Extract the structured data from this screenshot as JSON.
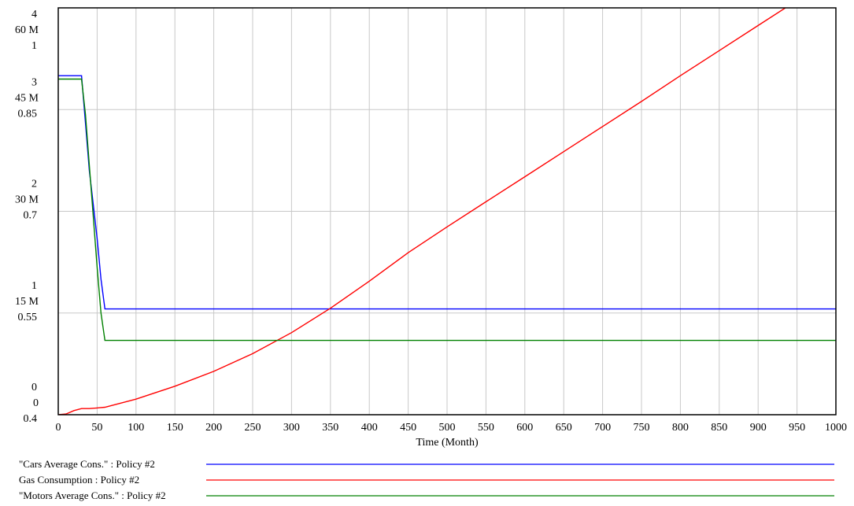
{
  "chart_data": {
    "type": "line",
    "title": "",
    "xlabel": "Time (Month)",
    "xlim": [
      0,
      1000
    ],
    "x_ticks": [
      0,
      50,
      100,
      150,
      200,
      250,
      300,
      350,
      400,
      450,
      500,
      550,
      600,
      650,
      700,
      750,
      800,
      850,
      900,
      950,
      1000
    ],
    "grid": true,
    "legend_position": "bottom",
    "y_axes": [
      {
        "min": 0,
        "max": 4,
        "tick_labels": [
          "0",
          "1",
          "2",
          "3",
          "4"
        ]
      },
      {
        "min": 0,
        "max": 60000000,
        "tick_labels": [
          "0",
          "15 M",
          "30 M",
          "45 M",
          "60 M"
        ]
      },
      {
        "min": 0.4,
        "max": 1,
        "tick_labels": [
          "0.4",
          "0.55",
          "0.7",
          "0.85",
          "1"
        ]
      }
    ],
    "series": [
      {
        "name": "\"Cars Average Cons.\" : Policy #2",
        "color": "#0000ff",
        "axis": 2,
        "x": [
          0,
          30,
          35,
          40,
          45,
          50,
          55,
          60,
          1000
        ],
        "y": [
          0.9,
          0.9,
          0.83,
          0.76,
          0.71,
          0.66,
          0.6,
          0.556,
          0.556
        ]
      },
      {
        "name": "Gas Consumption : Policy #2",
        "color": "#ff0000",
        "axis": 1,
        "x": [
          0,
          10,
          20,
          30,
          40,
          50,
          60,
          100,
          150,
          200,
          250,
          300,
          350,
          400,
          450,
          500,
          550,
          600,
          650,
          700,
          750,
          800,
          850,
          900,
          950,
          1000
        ],
        "y": [
          0,
          100000,
          600000,
          900000,
          900000,
          1000000,
          1100000,
          2300000,
          4200000,
          6400000,
          9000000,
          12100000,
          15700000,
          19700000,
          23900000,
          27700000,
          31400000,
          35100000,
          38800000,
          42500000,
          46200000,
          50000000,
          53700000,
          57400000,
          61100000,
          64700000
        ]
      },
      {
        "name": "\"Motors Average Cons.\" : Policy #2",
        "color": "#008000",
        "axis": 0,
        "x": [
          0,
          30,
          35,
          40,
          45,
          50,
          55,
          60,
          1000
        ],
        "y": [
          3.3,
          3.3,
          2.95,
          2.45,
          1.95,
          1.45,
          1.0,
          0.73,
          0.73
        ]
      }
    ]
  }
}
